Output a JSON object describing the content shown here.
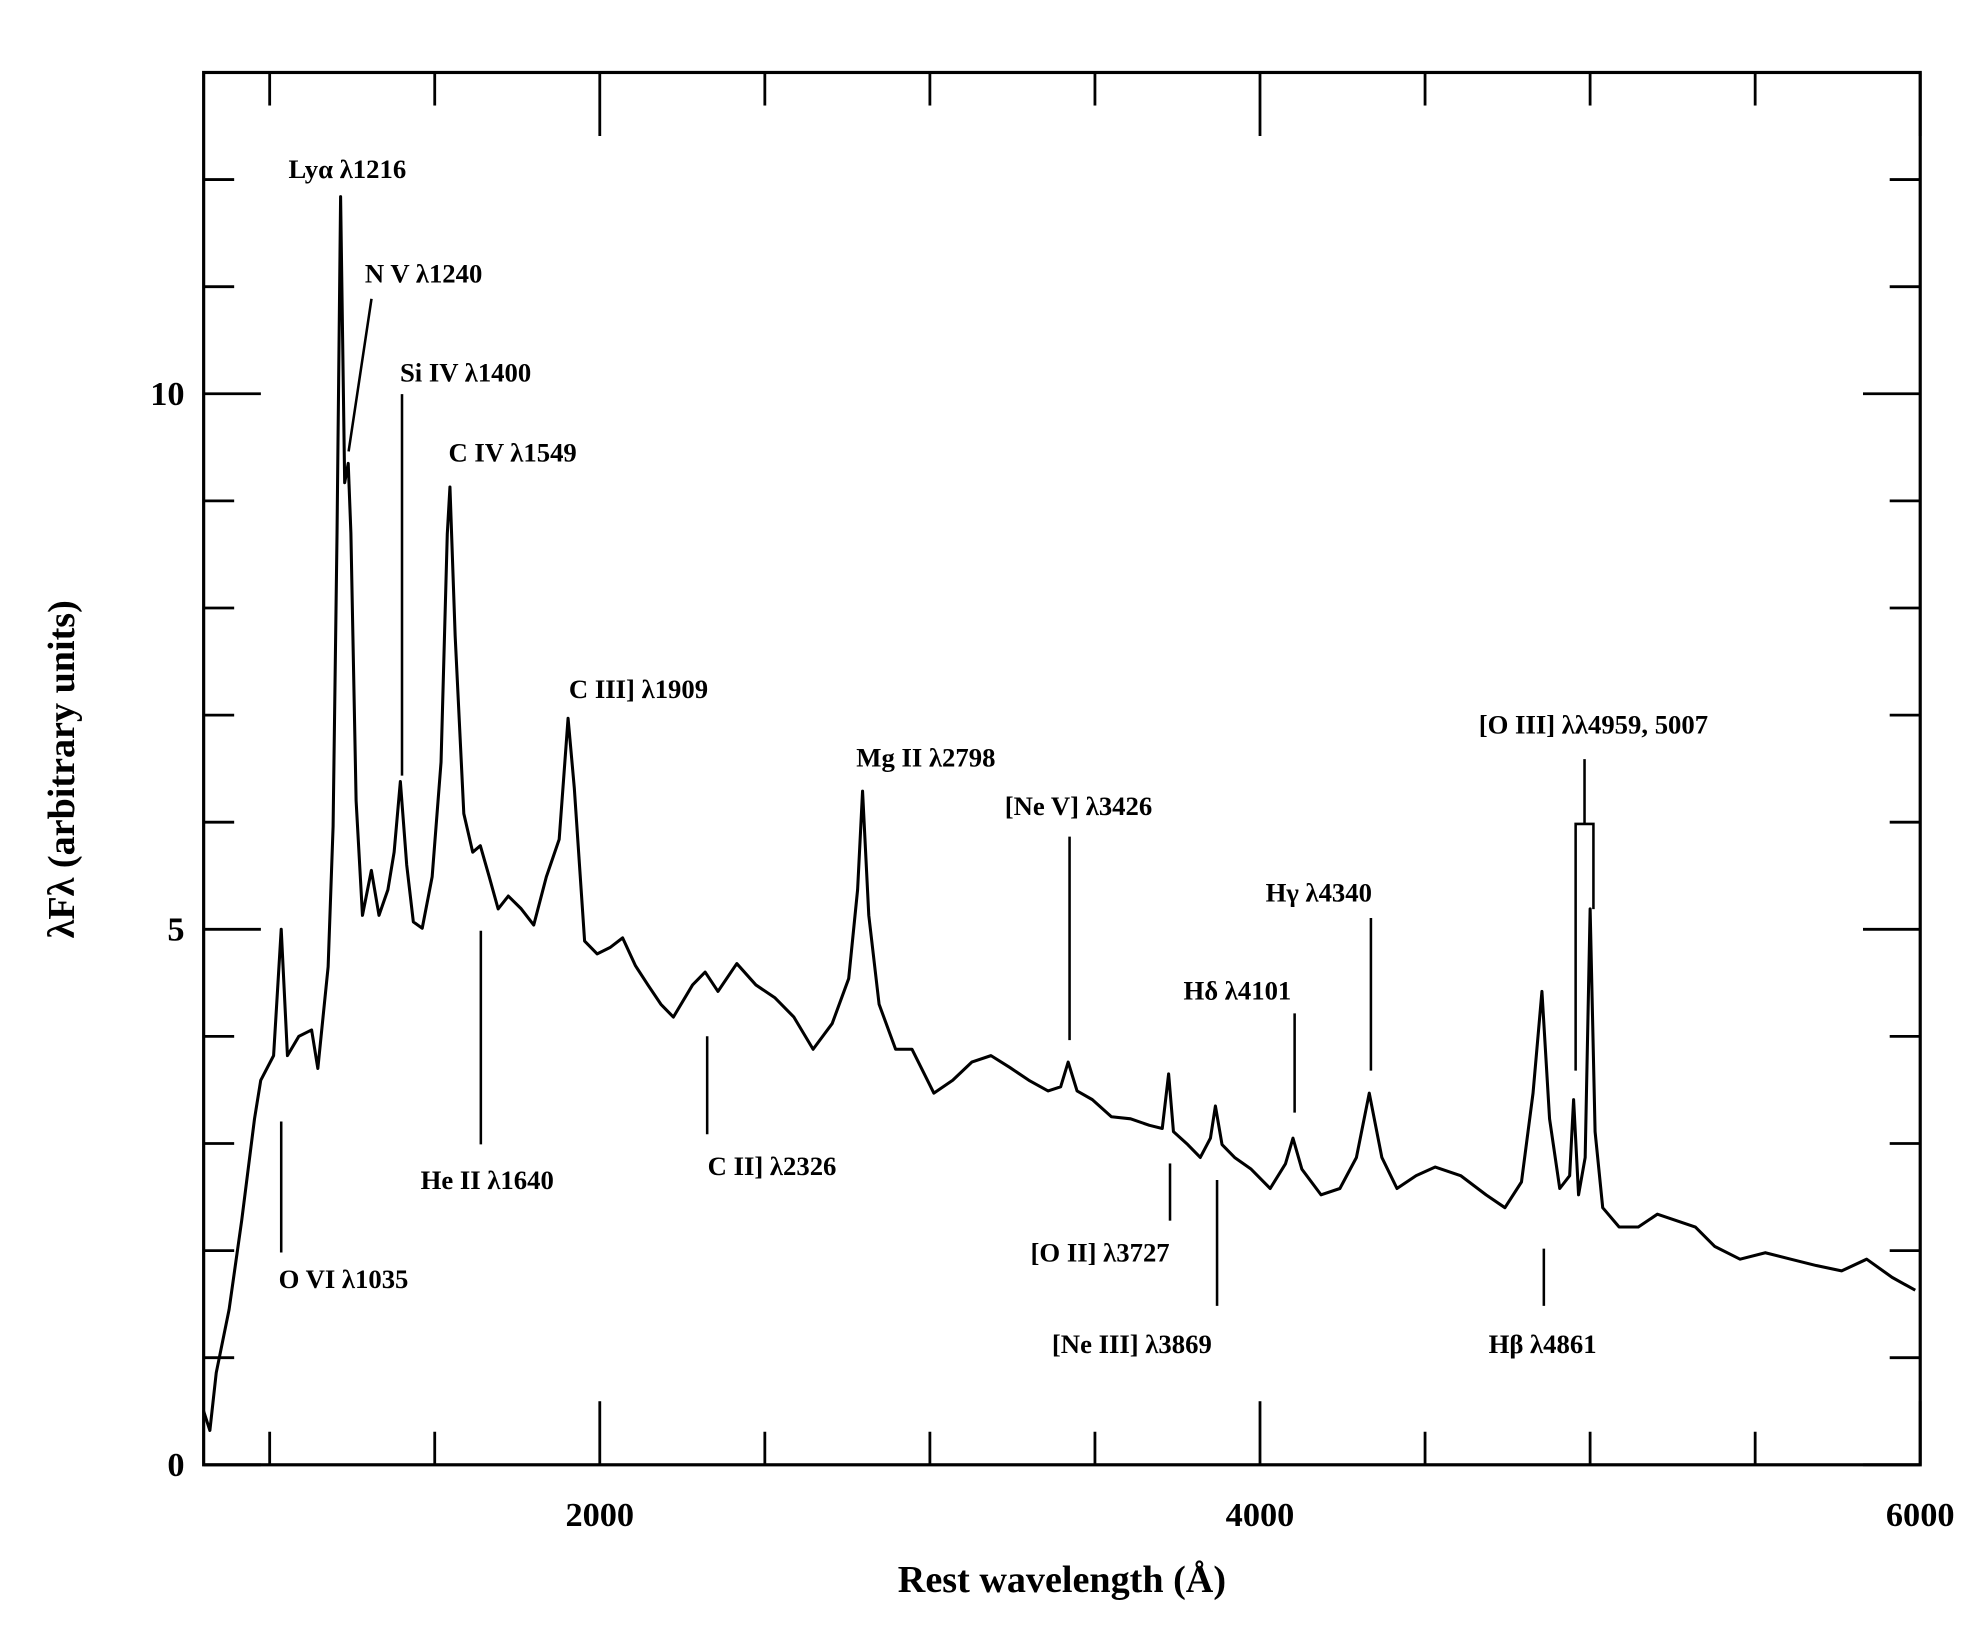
{
  "chart_data": {
    "type": "line",
    "xlabel": "Rest wavelength (Å)",
    "ylabel": "λFλ (arbitrary units)",
    "xlim": [
      800,
      6000
    ],
    "ylim": [
      0,
      13
    ],
    "xticks": [
      2000,
      4000,
      6000
    ],
    "yticks": [
      0,
      5,
      10
    ],
    "xticks_minor": [
      1000,
      1500,
      2500,
      3000,
      3500,
      4500,
      5000,
      5500
    ],
    "yticks_minor": [
      1,
      2,
      3,
      4,
      6,
      7,
      8,
      9,
      11,
      12
    ],
    "color": "#000000",
    "x": [
      800,
      819,
      838,
      877,
      915,
      954,
      973,
      1012,
      1035,
      1054,
      1088,
      1127,
      1146,
      1177,
      1192,
      1204,
      1215,
      1227,
      1238,
      1246,
      1262,
      1281,
      1308,
      1331,
      1358,
      1377,
      1396,
      1415,
      1435,
      1462,
      1492,
      1519,
      1538,
      1546,
      1562,
      1588,
      1615,
      1638,
      1665,
      1692,
      1723,
      1762,
      1800,
      1838,
      1877,
      1904,
      1923,
      1954,
      1992,
      2031,
      2069,
      2108,
      2146,
      2185,
      2223,
      2281,
      2319,
      2358,
      2415,
      2473,
      2531,
      2588,
      2646,
      2704,
      2754,
      2781,
      2796,
      2815,
      2846,
      2896,
      2946,
      3012,
      3069,
      3127,
      3185,
      3242,
      3300,
      3358,
      3396,
      3419,
      3446,
      3492,
      3550,
      3608,
      3665,
      3704,
      3723,
      3738,
      3781,
      3819,
      3850,
      3865,
      3885,
      3923,
      3973,
      4031,
      4077,
      4100,
      4127,
      4185,
      4242,
      4292,
      4331,
      4369,
      4415,
      4473,
      4531,
      4608,
      4685,
      4742,
      4792,
      4827,
      4854,
      4877,
      4908,
      4938,
      4950,
      4965,
      4985,
      5000,
      5015,
      5038,
      5088,
      5146,
      5204,
      5262,
      5319,
      5377,
      5454,
      5531,
      5608,
      5685,
      5762,
      5838,
      5915,
      5985
    ],
    "values": [
      0.5,
      0.32,
      0.86,
      1.45,
      2.28,
      3.23,
      3.59,
      3.82,
      5.0,
      3.82,
      4.0,
      4.06,
      3.7,
      4.65,
      5.96,
      8.7,
      11.84,
      9.17,
      9.35,
      8.7,
      6.2,
      5.13,
      5.55,
      5.13,
      5.37,
      5.72,
      6.38,
      5.6,
      5.07,
      5.01,
      5.49,
      6.56,
      8.69,
      9.13,
      7.74,
      6.08,
      5.72,
      5.78,
      5.49,
      5.19,
      5.31,
      5.19,
      5.04,
      5.49,
      5.84,
      6.97,
      6.32,
      4.89,
      4.77,
      4.83,
      4.92,
      4.66,
      4.48,
      4.3,
      4.18,
      4.48,
      4.6,
      4.42,
      4.68,
      4.48,
      4.36,
      4.18,
      3.88,
      4.12,
      4.54,
      5.37,
      6.29,
      5.13,
      4.3,
      3.88,
      3.88,
      3.47,
      3.59,
      3.76,
      3.82,
      3.71,
      3.59,
      3.49,
      3.53,
      3.76,
      3.49,
      3.41,
      3.25,
      3.23,
      3.17,
      3.14,
      3.65,
      3.11,
      2.99,
      2.87,
      3.05,
      3.35,
      2.99,
      2.87,
      2.76,
      2.58,
      2.81,
      3.05,
      2.76,
      2.52,
      2.58,
      2.87,
      3.47,
      2.87,
      2.58,
      2.7,
      2.78,
      2.7,
      2.52,
      2.4,
      2.64,
      3.47,
      4.42,
      3.23,
      2.58,
      2.7,
      3.41,
      2.52,
      2.87,
      5.19,
      3.11,
      2.4,
      2.22,
      2.22,
      2.34,
      2.28,
      2.22,
      2.04,
      1.92,
      1.98,
      1.92,
      1.86,
      1.81,
      1.92,
      1.75,
      1.63
    ],
    "annotations": [
      "Lyα λ1216",
      "N V λ1240",
      "Si IV λ1400",
      "C IV λ1549",
      "C III] λ1909",
      "Mg II λ2798",
      "[Ne V] λ3426",
      "Hγ λ4340",
      "Hδ λ4101",
      "[O III] λλ4959, 5007",
      "O VI λ1035",
      "He II λ1640",
      "C II] λ2326",
      "[O II] λ3727",
      "[Ne III] λ3869",
      "Hβ λ4861"
    ]
  }
}
